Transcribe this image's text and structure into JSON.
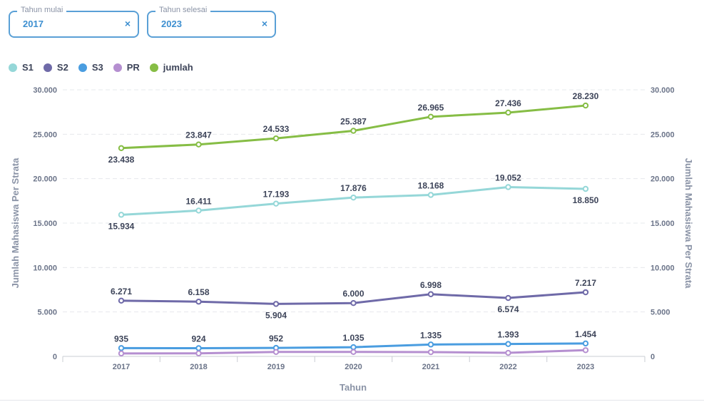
{
  "filters": {
    "start": {
      "label": "Tahun mulai",
      "value": "2017",
      "clear": "×"
    },
    "end": {
      "label": "Tahun selesai",
      "value": "2023",
      "clear": "×"
    }
  },
  "colors": {
    "S1": "#95d7d8",
    "S2": "#6f6aa8",
    "S3": "#4a9de0",
    "PR": "#b58fd0",
    "jumlah": "#86bd45"
  },
  "chart_data": {
    "type": "line",
    "x": [
      "2017",
      "2018",
      "2019",
      "2020",
      "2021",
      "2022",
      "2023"
    ],
    "xlabel": "Tahun",
    "ylabel": "Jumlah Mahasiswa Per Strata",
    "ylabel_right": "Jumlah Mahasiswa Per Strata",
    "ylim": [
      0,
      30000
    ],
    "yticks": [
      "0",
      "5.000",
      "10.000",
      "15.000",
      "20.000",
      "25.000",
      "30.000"
    ],
    "grid": true,
    "legend_position": "top-left",
    "series": [
      {
        "name": "S1",
        "values": [
          15934,
          16411,
          17193,
          17876,
          18168,
          19052,
          18850
        ],
        "labels": [
          "15.934",
          "16.411",
          "17.193",
          "17.876",
          "18.168",
          "19.052",
          "18.850"
        ],
        "label_pos": [
          "below",
          "above",
          "above",
          "above",
          "above",
          "above",
          "below"
        ]
      },
      {
        "name": "S2",
        "values": [
          6271,
          6158,
          5904,
          6000,
          6998,
          6574,
          7217
        ],
        "labels": [
          "6.271",
          "6.158",
          "5.904",
          "6.000",
          "6.998",
          "6.574",
          "7.217"
        ],
        "label_pos": [
          "above",
          "above",
          "below",
          "above",
          "above",
          "below",
          "above"
        ]
      },
      {
        "name": "S3",
        "values": [
          935,
          924,
          952,
          1035,
          1335,
          1393,
          1454
        ],
        "labels": [
          "935",
          "924",
          "952",
          "1.035",
          "1.335",
          "1.393",
          "1.454"
        ],
        "label_pos": [
          "above",
          "above",
          "above",
          "above",
          "above",
          "above",
          "above"
        ]
      },
      {
        "name": "PR",
        "values": [
          330,
          340,
          500,
          500,
          480,
          400,
          700
        ],
        "labels": [],
        "label_pos": []
      },
      {
        "name": "jumlah",
        "values": [
          23438,
          23847,
          24533,
          25387,
          26965,
          27436,
          28230
        ],
        "labels": [
          "23.438",
          "23.847",
          "24.533",
          "25.387",
          "26.965",
          "27.436",
          "28.230"
        ],
        "label_pos": [
          "below",
          "above",
          "above",
          "above",
          "above",
          "above",
          "above"
        ]
      }
    ]
  }
}
